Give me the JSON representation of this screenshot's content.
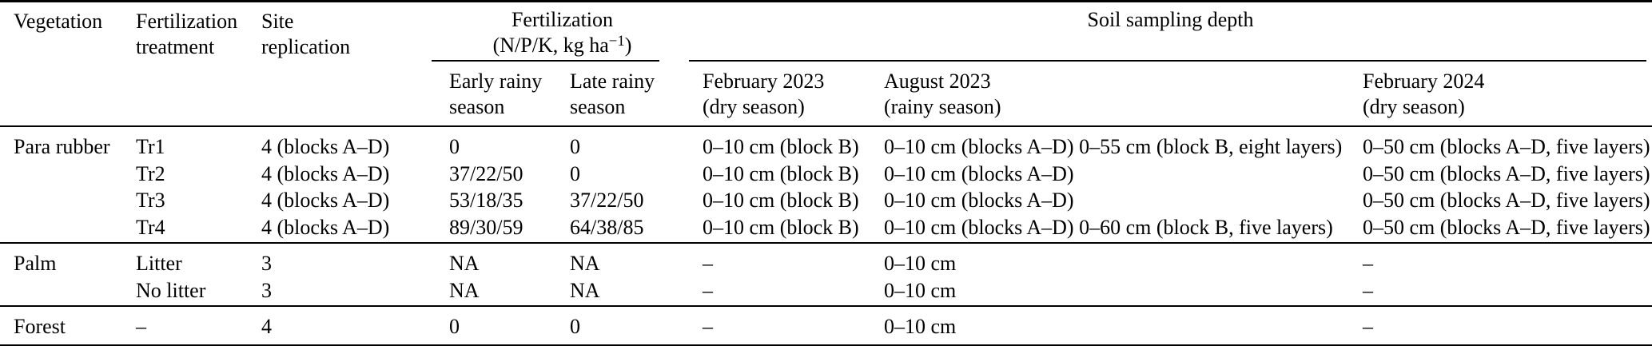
{
  "colors": {
    "text": "#000000",
    "background": "#ffffff",
    "rules": "#000000"
  },
  "header": {
    "vegetation": "Vegetation",
    "treatment": "Fertilization\ntreatment",
    "replication": "Site\nreplication",
    "fert_group": {
      "title": "Fertilization",
      "unit_pre": "(N/P/K, kg ha",
      "unit_sup": "−1",
      "unit_post": ")"
    },
    "soil_group": "Soil sampling depth",
    "early": "Early rainy\nseason",
    "late": "Late rainy\nseason",
    "feb2023": "February 2023\n(dry season)",
    "aug2023": "August 2023\n(rainy season)",
    "feb2024": "February 2024\n(dry season)"
  },
  "sections": [
    {
      "vegetation": "Para rubber",
      "rows": [
        {
          "treatment": "Tr1",
          "replication": "4 (blocks A–D)",
          "early": "0",
          "late": "0",
          "feb2023": "0–10 cm (block B)",
          "aug2023": "0–10 cm (blocks A–D) 0–55 cm (block B, eight layers)",
          "feb2024": "0–50 cm (blocks A–D, five layers)"
        },
        {
          "treatment": "Tr2",
          "replication": "4 (blocks A–D)",
          "early": "37/22/50",
          "late": "0",
          "feb2023": "0–10 cm (block B)",
          "aug2023": "0–10 cm (blocks A–D)",
          "feb2024": "0–50 cm (blocks A–D, five layers)"
        },
        {
          "treatment": "Tr3",
          "replication": "4 (blocks A–D)",
          "early": "53/18/35",
          "late": "37/22/50",
          "feb2023": "0–10 cm (block B)",
          "aug2023": "0–10 cm (blocks A–D)",
          "feb2024": "0–50 cm (blocks A–D, five layers)"
        },
        {
          "treatment": "Tr4",
          "replication": "4 (blocks A–D)",
          "early": "89/30/59",
          "late": "64/38/85",
          "feb2023": "0–10 cm (block B)",
          "aug2023": "0–10 cm (blocks A–D) 0–60 cm (block B, five layers)",
          "feb2024": "0–50 cm (blocks A–D, five layers)"
        }
      ]
    },
    {
      "vegetation": "Palm",
      "rows": [
        {
          "treatment": "Litter",
          "replication": "3",
          "early": "NA",
          "late": "NA",
          "feb2023": "–",
          "aug2023": "0–10 cm",
          "feb2024": "–"
        },
        {
          "treatment": "No litter",
          "replication": "3",
          "early": "NA",
          "late": "NA",
          "feb2023": "–",
          "aug2023": "0–10 cm",
          "feb2024": "–"
        }
      ]
    },
    {
      "vegetation": "Forest",
      "rows": [
        {
          "treatment": "–",
          "replication": "4",
          "early": "0",
          "late": "0",
          "feb2023": "–",
          "aug2023": "0–10 cm",
          "feb2024": "–"
        }
      ]
    }
  ]
}
